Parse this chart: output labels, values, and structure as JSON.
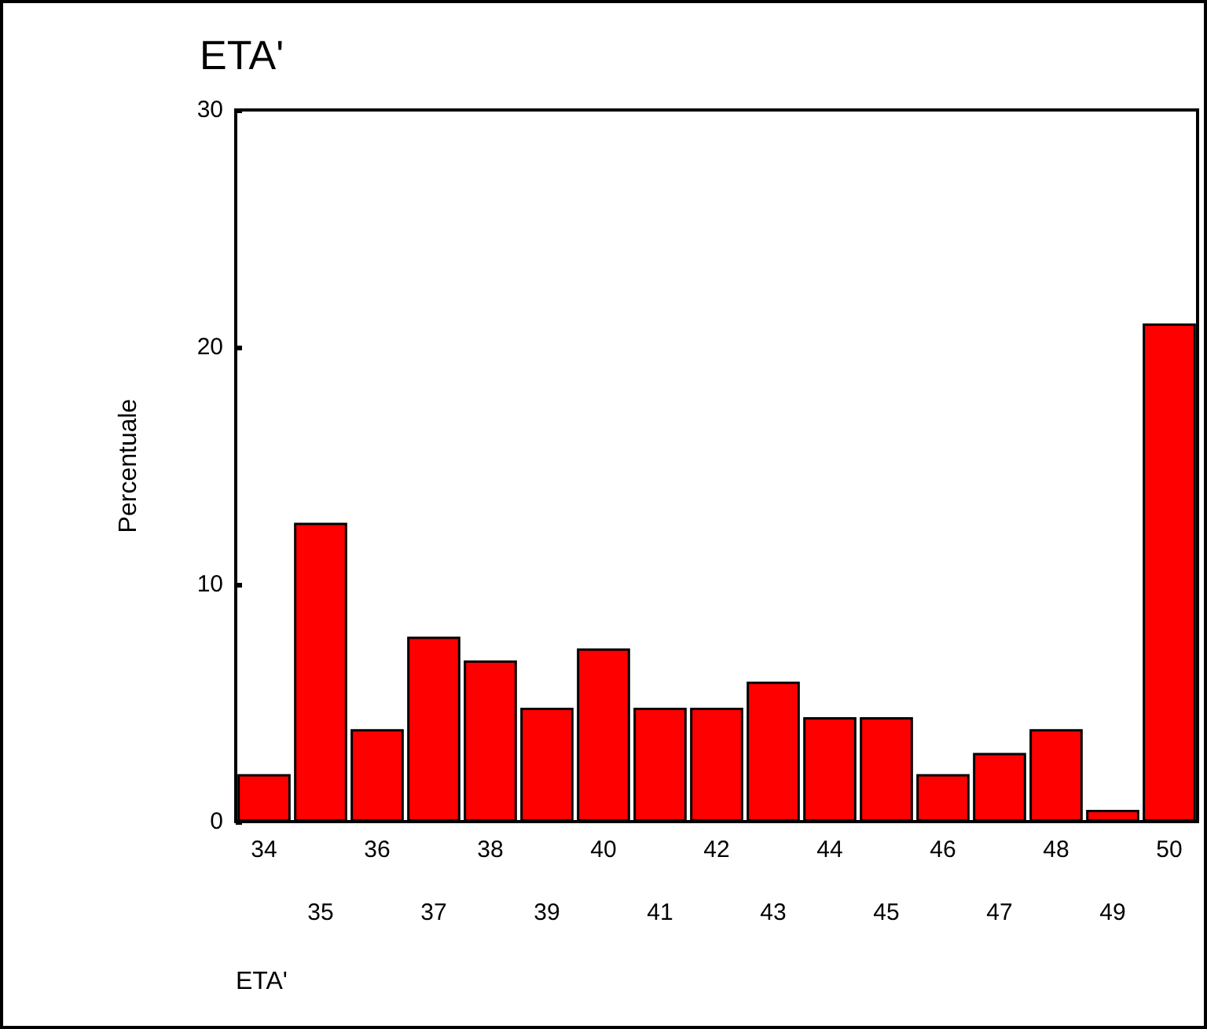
{
  "chart_data": {
    "type": "bar",
    "title": "ETA'",
    "xlabel": "ETA'",
    "ylabel": "Percentuale",
    "categories": [
      "34",
      "35",
      "36",
      "37",
      "38",
      "39",
      "40",
      "41",
      "42",
      "43",
      "44",
      "45",
      "46",
      "47",
      "48",
      "49",
      "50"
    ],
    "values": [
      2.0,
      12.6,
      3.9,
      7.8,
      6.8,
      4.8,
      7.3,
      4.8,
      4.8,
      5.9,
      4.4,
      4.4,
      2.0,
      2.9,
      3.9,
      0.5,
      21.0
    ],
    "color": "#ff0000",
    "ylim": [
      0,
      30
    ],
    "yticks": [
      0,
      10,
      20,
      30
    ],
    "grid": false
  }
}
